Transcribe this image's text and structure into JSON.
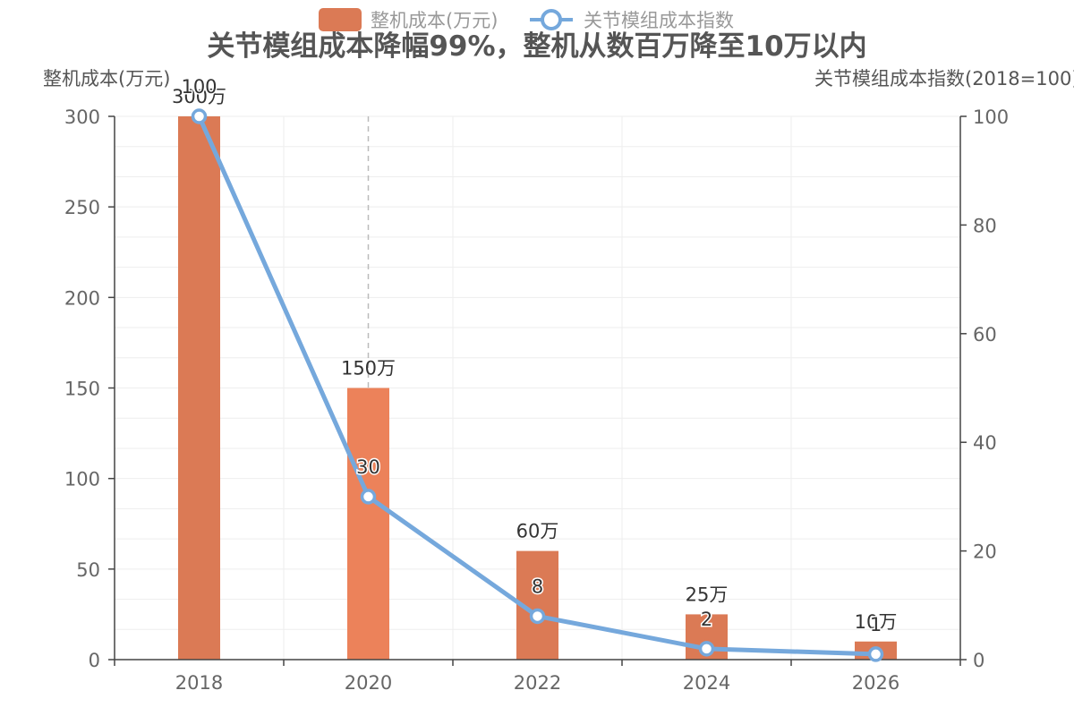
{
  "chart_data": {
    "type": "bar",
    "title": "关节模组成本降幅99%，整机从数百万降至10万以内",
    "categories": [
      "2018",
      "2020",
      "2022",
      "2024",
      "2026"
    ],
    "ylabel_left": "整机成本(万元)",
    "ylabel_right": "关节模组成本指数(2018=100)",
    "ylim_left": [
      0,
      300
    ],
    "ylim_right": [
      0,
      100
    ],
    "yticks_left": [
      "0",
      "50",
      "100",
      "150",
      "200",
      "250",
      "300"
    ],
    "yticks_right": [
      "0",
      "20",
      "40",
      "60",
      "80",
      "100"
    ],
    "legend_position": "top",
    "highlight_category": "2020",
    "series": [
      {
        "name": "整机成本(万元)",
        "type": "bar",
        "axis": "left",
        "color": "#db7a55",
        "highlight_color": "#ec825a",
        "values": [
          300,
          150,
          60,
          25,
          10
        ],
        "labels": [
          "300万",
          "150万",
          "60万",
          "25万",
          "10万"
        ]
      },
      {
        "name": "关节模组成本指数",
        "type": "line",
        "axis": "right",
        "color": "#75a8dc",
        "values": [
          100,
          30,
          8,
          2,
          1
        ],
        "labels": [
          "100",
          "30",
          "8",
          "2",
          "1"
        ]
      }
    ]
  }
}
